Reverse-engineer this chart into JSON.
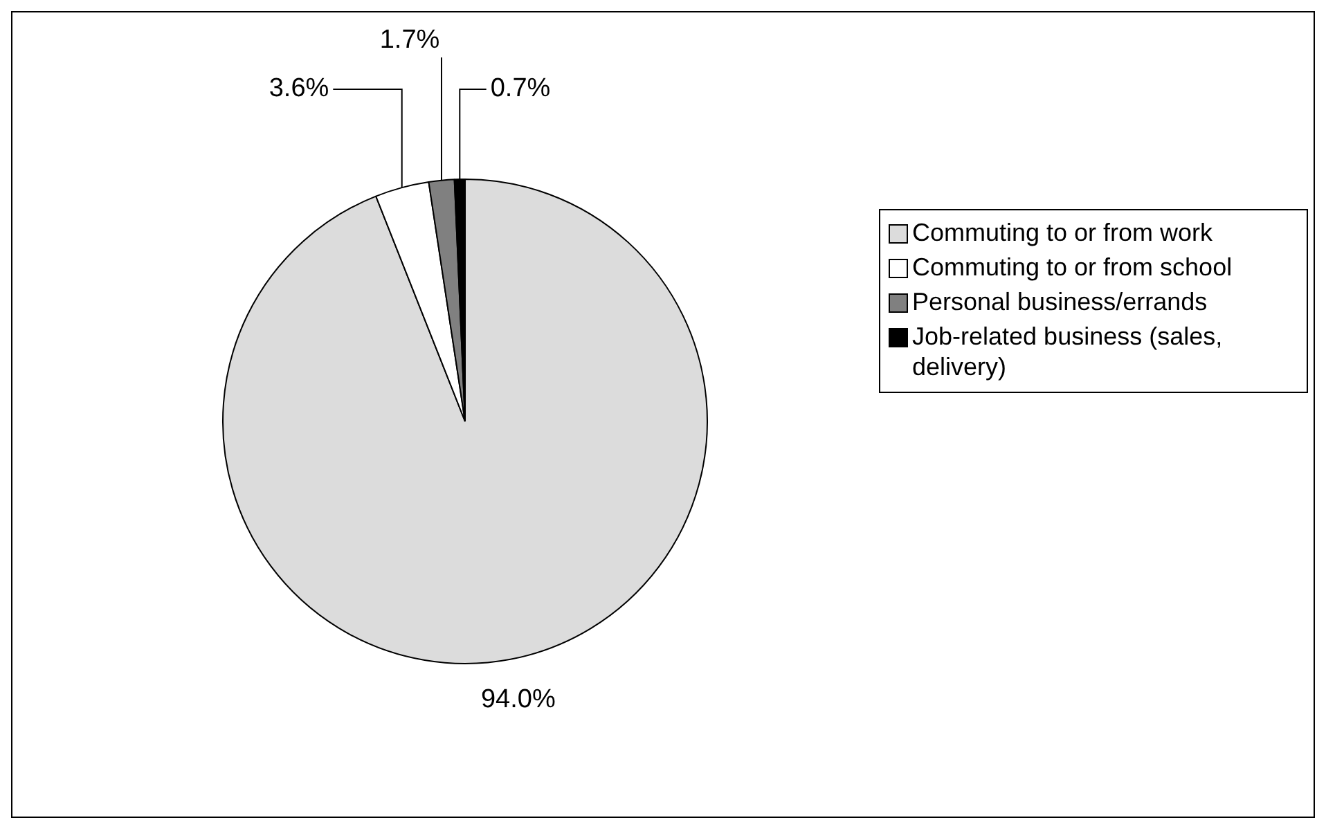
{
  "chart_data": {
    "type": "pie",
    "categories": [
      "Commuting to or from work",
      "Commuting to or from school",
      "Personal business/errands",
      "Job-related business (sales, delivery)"
    ],
    "values": [
      94.0,
      3.6,
      1.7,
      0.7
    ],
    "colors": [
      "#dcdcdc",
      "#ffffff",
      "#808080",
      "#000000"
    ],
    "value_labels": [
      "94.0%",
      "3.6%",
      "1.7%",
      "0.7%"
    ],
    "legend": "right"
  }
}
